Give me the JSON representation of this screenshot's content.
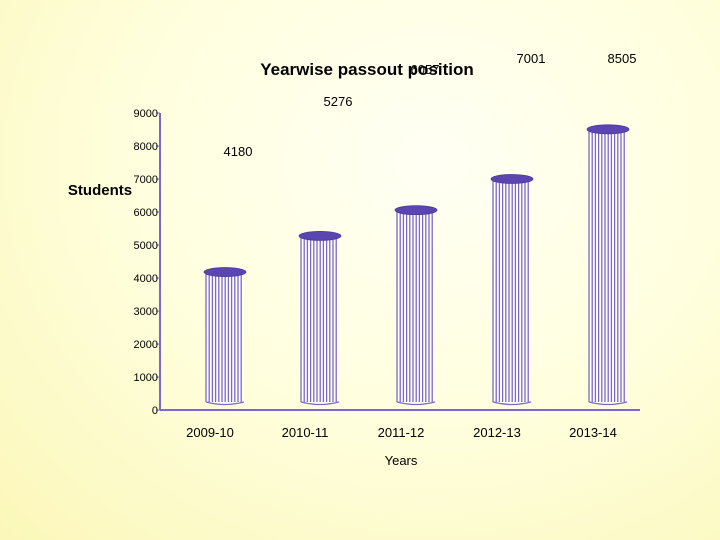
{
  "chart_data": {
    "type": "bar",
    "title": "Yearwise passout position",
    "xlabel": "Years",
    "ylabel": "Students",
    "categories": [
      "2009-10",
      "2010-11",
      "2011-12",
      "2012-13",
      "2013-14"
    ],
    "values": [
      4180,
      5276,
      6057,
      7001,
      8505
    ],
    "data_labels": [
      "4180",
      "5276",
      "6057",
      "7001",
      "8505"
    ],
    "ylim": [
      0,
      9000
    ],
    "yticks": [
      "0",
      "1000",
      "2000",
      "3000",
      "4000",
      "5000",
      "6000",
      "7000",
      "8000",
      "9000"
    ],
    "grid": false,
    "legend": "none",
    "bar_color": "#7b68c8",
    "bar_stripe_color": "#ffffff",
    "bar_cap_color": "#5a46b0",
    "axis_color": "#7b68c8"
  }
}
